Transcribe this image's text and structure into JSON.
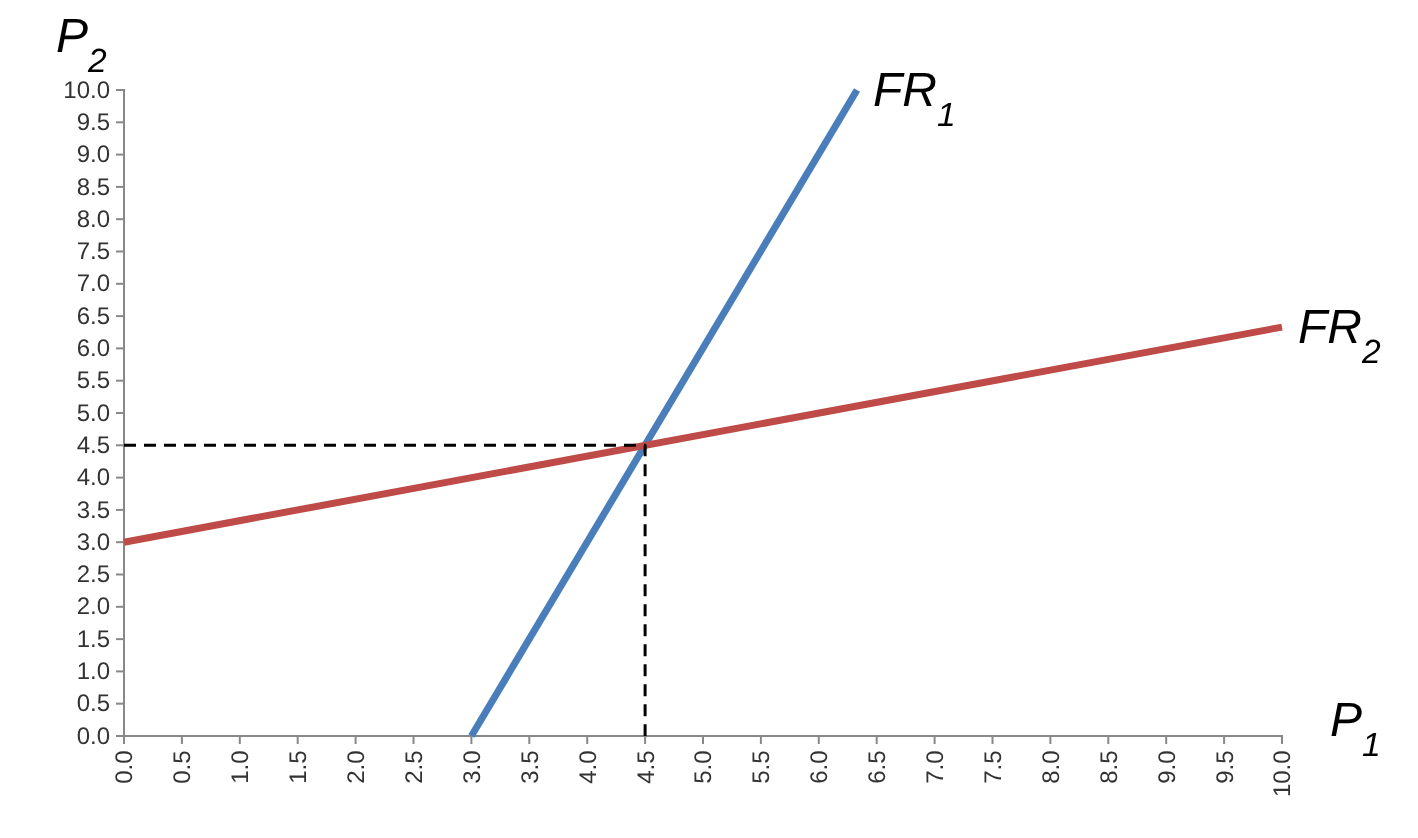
{
  "chart_data": {
    "type": "line",
    "xlabel": "P$_{1}$",
    "ylabel": "P$_{2}$",
    "xlim": [
      0,
      10
    ],
    "ylim": [
      0,
      10
    ],
    "xticks": [
      {
        "value": 0,
        "label": "0.0"
      },
      {
        "value": 0.5,
        "label": "0.5"
      },
      {
        "value": 1,
        "label": "1.0"
      },
      {
        "value": 1.5,
        "label": "1.5"
      },
      {
        "value": 2,
        "label": "2.0"
      },
      {
        "value": 2.5,
        "label": "2.5"
      },
      {
        "value": 3,
        "label": "3.0"
      },
      {
        "value": 3.5,
        "label": "3.5"
      },
      {
        "value": 4,
        "label": "4.0"
      },
      {
        "value": 4.5,
        "label": "4.5"
      },
      {
        "value": 5,
        "label": "5.0"
      },
      {
        "value": 5.5,
        "label": "5.5"
      },
      {
        "value": 6,
        "label": "6.0"
      },
      {
        "value": 6.5,
        "label": "6.5"
      },
      {
        "value": 7,
        "label": "7.0"
      },
      {
        "value": 7.5,
        "label": "7.5"
      },
      {
        "value": 8,
        "label": "8.0"
      },
      {
        "value": 8.5,
        "label": "8.5"
      },
      {
        "value": 9,
        "label": "9.0"
      },
      {
        "value": 9.5,
        "label": "9.5"
      },
      {
        "value": 10,
        "label": "10.0"
      }
    ],
    "yticks": [
      {
        "value": 0,
        "label": "0.0"
      },
      {
        "value": 0.5,
        "label": "0.5"
      },
      {
        "value": 1,
        "label": "1.0"
      },
      {
        "value": 1.5,
        "label": "1.5"
      },
      {
        "value": 2,
        "label": "2.0"
      },
      {
        "value": 2.5,
        "label": "2.5"
      },
      {
        "value": 3,
        "label": "3.0"
      },
      {
        "value": 3.5,
        "label": "3.5"
      },
      {
        "value": 4,
        "label": "4.0"
      },
      {
        "value": 4.5,
        "label": "4.5"
      },
      {
        "value": 5,
        "label": "5.0"
      },
      {
        "value": 5.5,
        "label": "5.5"
      },
      {
        "value": 6,
        "label": "6.0"
      },
      {
        "value": 6.5,
        "label": "6.5"
      },
      {
        "value": 7,
        "label": "7.0"
      },
      {
        "value": 7.5,
        "label": "7.5"
      },
      {
        "value": 8,
        "label": "8.0"
      },
      {
        "value": 8.5,
        "label": "8.5"
      },
      {
        "value": 9,
        "label": "9.0"
      },
      {
        "value": 9.5,
        "label": "9.5"
      },
      {
        "value": 10,
        "label": "10.0"
      }
    ],
    "grid": false,
    "series": [
      {
        "name": "FR$_{1}$",
        "color": "#4a7ebb",
        "x": [
          3,
          6.33
        ],
        "values": [
          0,
          10
        ]
      },
      {
        "name": "FR$_{2}$",
        "color": "#be4b48",
        "x": [
          0,
          10
        ],
        "values": [
          3,
          6.33
        ]
      },
      {
        "color": "#000000",
        "line_style": "dashed",
        "x": [
          0,
          4.5,
          4.5
        ],
        "values": [
          4.5,
          4.5,
          0
        ]
      }
    ]
  }
}
